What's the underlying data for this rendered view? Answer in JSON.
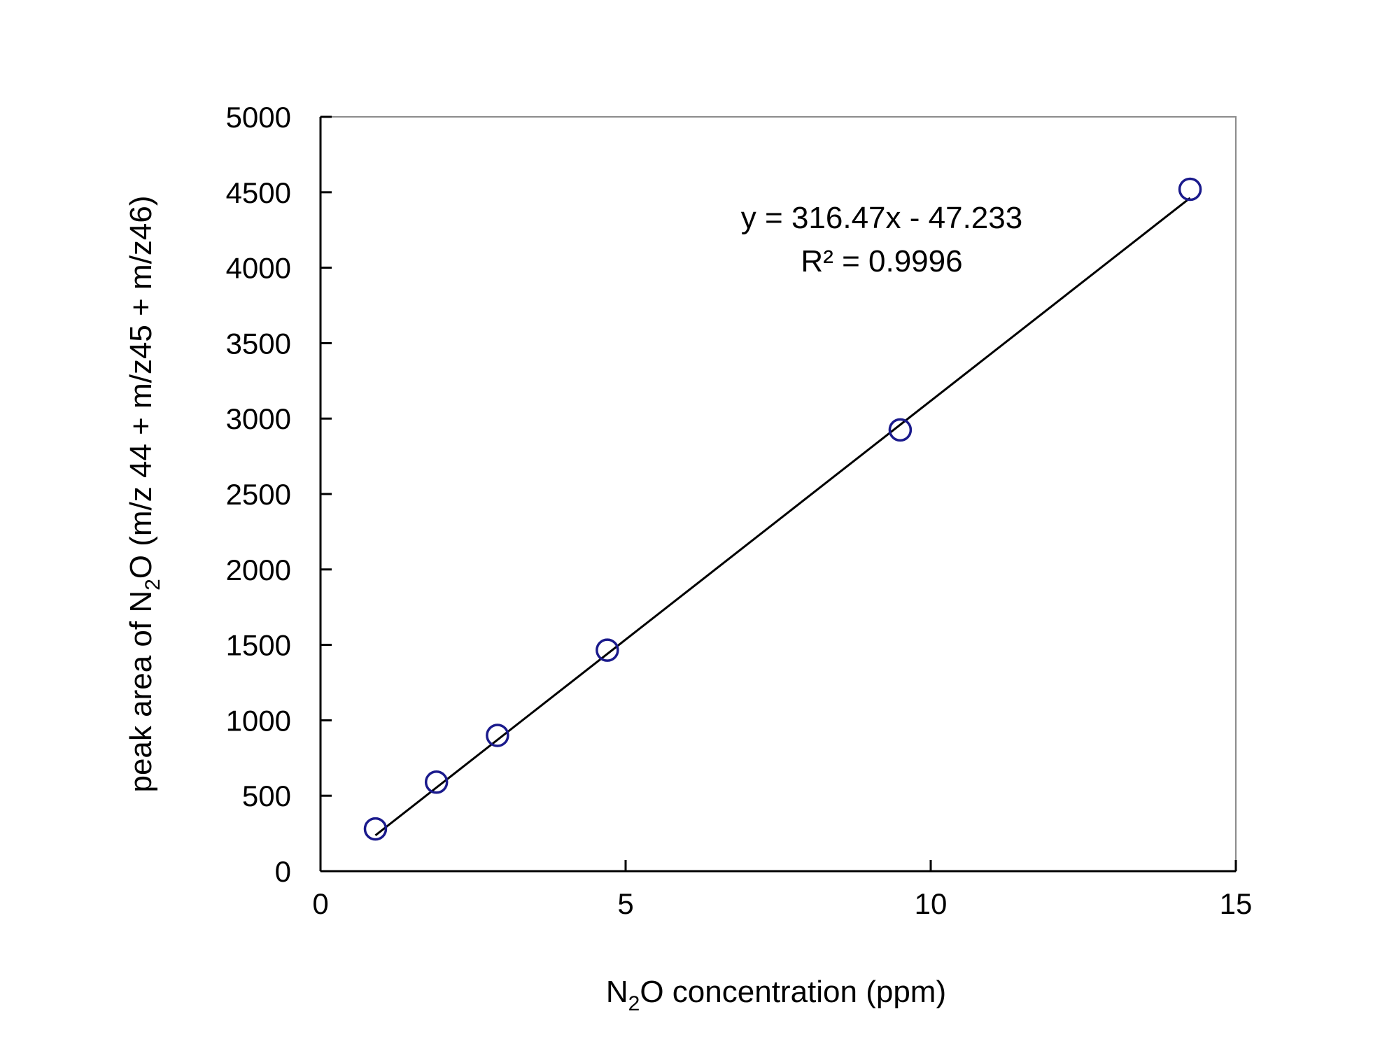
{
  "chart_data": {
    "type": "scatter",
    "xlabel": {
      "pre": "N",
      "sub": "2",
      "post": "O concentration (ppm)"
    },
    "ylabel": {
      "pre": "peak area of N",
      "sub": "2",
      "post": "O (m/z 44 + m/z45 + m/z46)"
    },
    "xlim": [
      0,
      15
    ],
    "ylim": [
      0,
      5000
    ],
    "xticks": [
      0,
      5,
      10,
      15
    ],
    "yticks": [
      0,
      500,
      1000,
      1500,
      2000,
      2500,
      3000,
      3500,
      4000,
      4500,
      5000
    ],
    "grid": false,
    "legend": "none",
    "series": [
      {
        "marker": "open-circle",
        "color": "#1a1a8c",
        "points": [
          {
            "x": 0.9,
            "y": 280
          },
          {
            "x": 1.9,
            "y": 590
          },
          {
            "x": 2.9,
            "y": 900
          },
          {
            "x": 4.7,
            "y": 1465
          },
          {
            "x": 9.5,
            "y": 2925
          },
          {
            "x": 14.25,
            "y": 4520
          }
        ]
      }
    ],
    "trendline": {
      "slope": 316.47,
      "intercept": -47.233,
      "x_range": [
        0.9,
        14.25
      ],
      "color": "#000000"
    },
    "annotations": {
      "equation": "y = 316.47x - 47.233",
      "r_squared": "R² = 0.9996"
    }
  }
}
